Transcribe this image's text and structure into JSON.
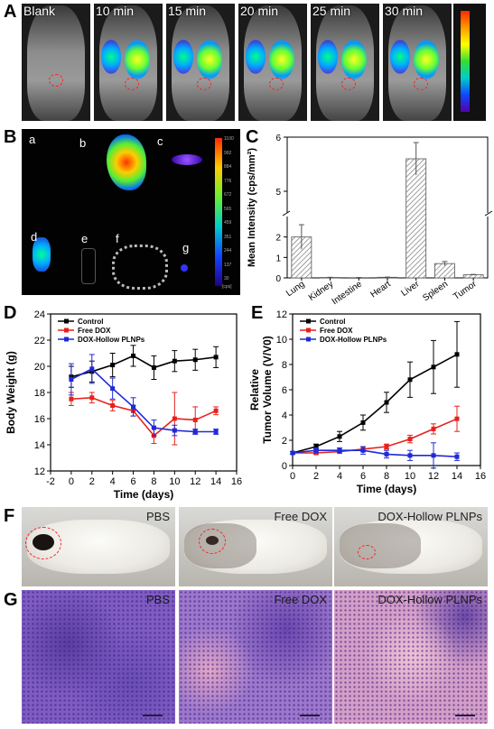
{
  "panels": {
    "A": {
      "letter": "A",
      "timepoints": [
        "Blank",
        "10 min",
        "15 min",
        "20 min",
        "25 min",
        "30 min"
      ]
    },
    "B": {
      "letter": "B",
      "organs": [
        "a",
        "b",
        "c",
        "d",
        "e",
        "f",
        "g"
      ],
      "scale": [
        "1100",
        "992",
        "884",
        "776",
        "672",
        "565",
        "459",
        "351",
        "244",
        "137",
        "30"
      ],
      "scale_unit": "[cps]"
    },
    "C": {
      "letter": "C"
    },
    "D": {
      "letter": "D"
    },
    "E": {
      "letter": "E"
    },
    "F": {
      "letter": "F",
      "labels": [
        "PBS",
        "Free DOX",
        "DOX-Hollow PLNPs"
      ]
    },
    "G": {
      "letter": "G",
      "labels": [
        "PBS",
        "Free DOX",
        "DOX-Hollow PLNPs"
      ]
    }
  },
  "chart_data": [
    {
      "id": "C",
      "type": "bar",
      "ylabel": "Mean Intensity (cps/mm²)",
      "categories": [
        "Lung",
        "Kidney",
        "Intestine",
        "Heart",
        "Liver",
        "Spleen",
        "Tumor"
      ],
      "values": [
        2.0,
        0.02,
        0.01,
        0.03,
        5.6,
        0.7,
        0.15
      ],
      "errors": [
        0.6,
        0.01,
        0.01,
        0.01,
        0.3,
        0.1,
        0.02
      ],
      "yticks": [
        "0",
        "1",
        "2",
        "5",
        "6"
      ],
      "axis_break": [
        3,
        4.6
      ]
    },
    {
      "id": "D",
      "type": "line",
      "xlabel": "Time (days)",
      "ylabel": "Body Weight (g)",
      "xlim": [
        -2,
        16
      ],
      "ylim": [
        12,
        24
      ],
      "xticks": [
        "-2",
        "0",
        "2",
        "4",
        "6",
        "8",
        "10",
        "12",
        "14",
        "16"
      ],
      "yticks": [
        "12",
        "14",
        "16",
        "18",
        "20",
        "22",
        "24"
      ],
      "x": [
        0,
        2,
        4,
        6,
        8,
        10,
        12,
        14
      ],
      "series": [
        {
          "name": "Control",
          "color": "#000000",
          "values": [
            19.2,
            19.6,
            20.1,
            20.8,
            19.9,
            20.4,
            20.5,
            20.7
          ],
          "errors": [
            0.8,
            0.8,
            0.9,
            0.8,
            0.9,
            0.8,
            0.8,
            0.8
          ]
        },
        {
          "name": "Free DOX",
          "color": "#e8201c",
          "values": [
            17.5,
            17.6,
            17.0,
            16.6,
            14.7,
            16.0,
            15.9,
            16.6
          ],
          "errors": [
            0.5,
            0.4,
            0.4,
            0.4,
            0.6,
            2.0,
            1.0,
            0.3
          ]
        },
        {
          "name": "DOX-Hollow PLNPs",
          "color": "#1f2ad6",
          "values": [
            19.0,
            19.8,
            18.3,
            16.9,
            15.3,
            15.1,
            15.0,
            15.0
          ],
          "errors": [
            1.2,
            1.1,
            0.8,
            0.7,
            0.6,
            0.4,
            0.2,
            0.2
          ]
        }
      ]
    },
    {
      "id": "E",
      "type": "line",
      "xlabel": "Time (days)",
      "ylabel": "Relative Tumor Volume (V/V0)",
      "xlim": [
        0,
        16
      ],
      "ylim": [
        0,
        12
      ],
      "xticks": [
        "0",
        "2",
        "4",
        "6",
        "8",
        "10",
        "12",
        "14",
        "16"
      ],
      "yticks": [
        "0",
        "2",
        "4",
        "6",
        "8",
        "10",
        "12"
      ],
      "x": [
        0,
        2,
        4,
        6,
        8,
        10,
        12,
        14
      ],
      "series": [
        {
          "name": "Control",
          "color": "#000000",
          "values": [
            1.0,
            1.5,
            2.3,
            3.4,
            5.0,
            6.8,
            7.8,
            8.8
          ],
          "errors": [
            0.1,
            0.2,
            0.4,
            0.6,
            0.8,
            1.4,
            2.1,
            2.6
          ]
        },
        {
          "name": "Free DOX",
          "color": "#e8201c",
          "values": [
            1.0,
            1.0,
            1.1,
            1.3,
            1.5,
            2.1,
            2.9,
            3.7
          ],
          "errors": [
            0.1,
            0.1,
            0.1,
            0.2,
            0.2,
            0.3,
            0.4,
            1.0
          ]
        },
        {
          "name": "DOX-Hollow PLNPs",
          "color": "#1f2ad6",
          "values": [
            1.0,
            1.2,
            1.2,
            1.2,
            0.9,
            0.8,
            0.8,
            0.7
          ],
          "errors": [
            0.1,
            0.2,
            0.2,
            0.3,
            0.3,
            0.4,
            1.0,
            0.3
          ]
        }
      ]
    }
  ]
}
